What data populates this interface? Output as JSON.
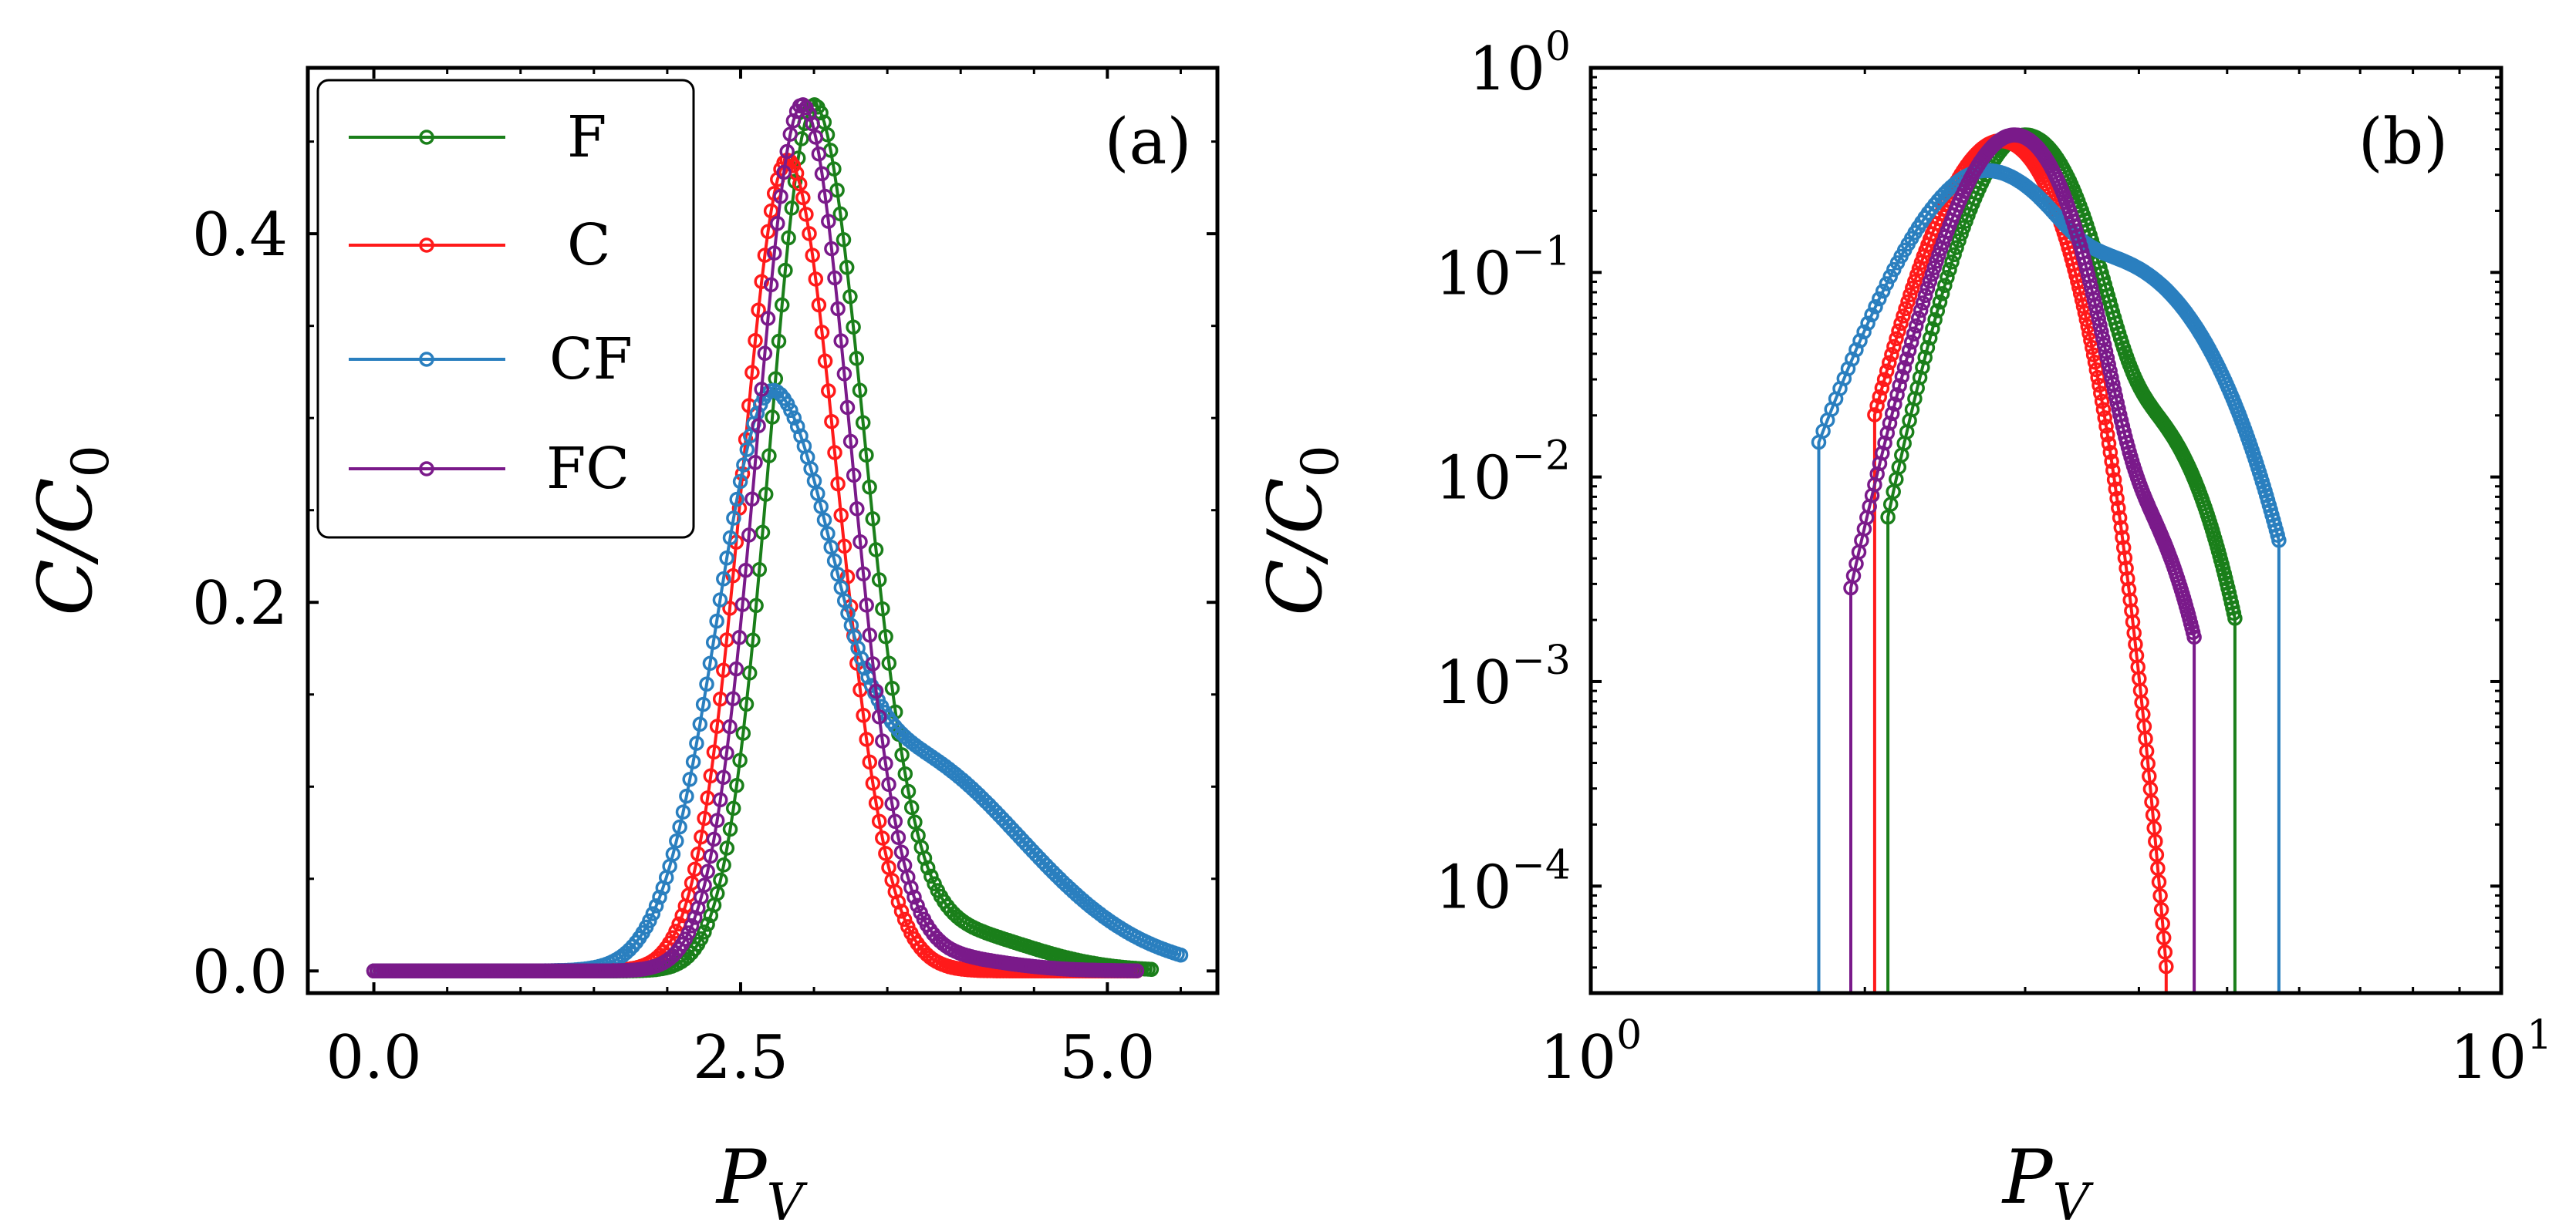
{
  "figure": {
    "panel_a_label": "(a)",
    "panel_b_label": "(b)"
  },
  "colors": {
    "F": "#1a7f1a",
    "C": "#ff1a1a",
    "CF": "#2a7fbf",
    "FC": "#7a1a8a"
  },
  "chart_data": [
    {
      "type": "line",
      "panel": "(a)",
      "xlabel": "P_V",
      "ylabel": "C/C_0",
      "xlim": [
        -0.45,
        5.75
      ],
      "ylim": [
        -0.012,
        0.49
      ],
      "xticks": [
        0.0,
        2.5,
        5.0
      ],
      "xtick_labels": [
        "0.0",
        "2.5",
        "5.0"
      ],
      "yticks": [
        0.0,
        0.2,
        0.4
      ],
      "ytick_labels": [
        "0.0",
        "0.2",
        "0.4"
      ],
      "legend": {
        "placement": "top-left",
        "entries": [
          "F",
          "C",
          "CF",
          "FC"
        ]
      },
      "series": [
        {
          "name": "F",
          "x_range": [
            0.0,
            5.3
          ],
          "peak_x": 3.0,
          "peak_y": 0.47,
          "sigma_left": 0.3,
          "sigma_right": 0.34,
          "tail_amp": 0.022,
          "tail_center": 3.9,
          "tail_width": 0.55
        },
        {
          "name": "C",
          "x_range": [
            0.0,
            5.2
          ],
          "peak_x": 2.82,
          "peak_y": 0.44,
          "sigma_left": 0.31,
          "sigma_right": 0.34,
          "tail_amp": 0.0,
          "tail_center": 3.9,
          "tail_width": 0.5
        },
        {
          "name": "CF",
          "x_range": [
            0.0,
            5.5
          ],
          "peak_x": 2.72,
          "peak_y": 0.315,
          "sigma_left": 0.38,
          "sigma_right": 0.33,
          "tail_amp": 0.12,
          "tail_center": 3.55,
          "tail_width": 0.85
        },
        {
          "name": "FC",
          "x_range": [
            0.0,
            5.2
          ],
          "peak_x": 2.92,
          "peak_y": 0.47,
          "sigma_left": 0.31,
          "sigma_right": 0.33,
          "tail_amp": 0.008,
          "tail_center": 3.8,
          "tail_width": 0.45
        }
      ]
    },
    {
      "type": "line",
      "panel": "(b)",
      "xscale": "log",
      "yscale": "log",
      "xlabel": "P_V",
      "ylabel": "C/C_0",
      "xlim": [
        1,
        10
      ],
      "ylim": [
        3e-05,
        1
      ],
      "xtick_labels": [
        {
          "base": "10",
          "exp": "0"
        },
        {
          "base": "10",
          "exp": "1"
        }
      ],
      "ytick_labels": [
        {
          "base": "10",
          "exp": "0"
        },
        {
          "base": "10",
          "exp": "−1"
        },
        {
          "base": "10",
          "exp": "−2"
        },
        {
          "base": "10",
          "exp": "−3"
        },
        {
          "base": "10",
          "exp": "−4"
        }
      ],
      "series": [
        {
          "name": "F",
          "x_range": [
            2.12,
            5.1
          ],
          "peak_x": 3.0,
          "peak_y": 0.47,
          "sigma_left": 0.3,
          "sigma_right": 0.34,
          "tail_amp": 0.022,
          "tail_center": 3.9,
          "tail_width": 0.55,
          "cut_min": 0.00013
        },
        {
          "name": "C",
          "x_range": [
            2.05,
            4.62
          ],
          "peak_x": 2.82,
          "peak_y": 0.44,
          "sigma_left": 0.31,
          "sigma_right": 0.34,
          "tail_amp": 0.0,
          "tail_center": 3.9,
          "tail_width": 0.5,
          "cut_min": 4e-05
        },
        {
          "name": "CF",
          "x_range": [
            1.78,
            5.7
          ],
          "peak_x": 2.72,
          "peak_y": 0.315,
          "sigma_left": 0.38,
          "sigma_right": 0.33,
          "tail_amp": 0.12,
          "tail_center": 3.55,
          "tail_width": 0.85,
          "cut_min": 0.0005
        },
        {
          "name": "FC",
          "x_range": [
            1.93,
            4.6
          ],
          "peak_x": 2.92,
          "peak_y": 0.47,
          "sigma_left": 0.31,
          "sigma_right": 0.33,
          "tail_amp": 0.008,
          "tail_center": 3.8,
          "tail_width": 0.45,
          "cut_min": 8e-05
        }
      ]
    }
  ]
}
